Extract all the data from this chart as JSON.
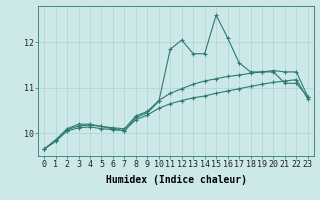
{
  "xlabel": "Humidex (Indice chaleur)",
  "background_color": "#cce8e8",
  "line_color": "#2d7a70",
  "grid_color": "#aad4d4",
  "x_values": [
    0,
    1,
    2,
    3,
    4,
    5,
    6,
    7,
    8,
    9,
    10,
    11,
    12,
    13,
    14,
    15,
    16,
    17,
    18,
    19,
    20,
    21,
    22,
    23
  ],
  "y_main": [
    9.65,
    9.85,
    10.1,
    10.2,
    10.2,
    10.15,
    10.1,
    10.05,
    10.35,
    10.45,
    10.7,
    11.85,
    12.05,
    11.75,
    11.75,
    12.6,
    12.1,
    11.55,
    11.35,
    11.35,
    11.35,
    11.1,
    11.1,
    10.8
  ],
  "y_line2": [
    9.65,
    9.85,
    10.08,
    10.16,
    10.18,
    10.15,
    10.12,
    10.1,
    10.38,
    10.48,
    10.72,
    10.88,
    10.98,
    11.08,
    11.15,
    11.2,
    11.25,
    11.28,
    11.32,
    11.35,
    11.38,
    11.35,
    11.35,
    10.8
  ],
  "y_line3": [
    9.65,
    9.82,
    10.05,
    10.12,
    10.14,
    10.1,
    10.08,
    10.06,
    10.3,
    10.4,
    10.55,
    10.65,
    10.72,
    10.78,
    10.82,
    10.88,
    10.93,
    10.98,
    11.03,
    11.08,
    11.12,
    11.15,
    11.18,
    10.75
  ],
  "ylim": [
    9.5,
    12.8
  ],
  "yticks": [
    10,
    11,
    12
  ],
  "xticks": [
    0,
    1,
    2,
    3,
    4,
    5,
    6,
    7,
    8,
    9,
    10,
    11,
    12,
    13,
    14,
    15,
    16,
    17,
    18,
    19,
    20,
    21,
    22,
    23
  ],
  "marker": "+",
  "markersize": 3,
  "linewidth": 0.8,
  "xlabel_fontsize": 7,
  "tick_fontsize": 6
}
